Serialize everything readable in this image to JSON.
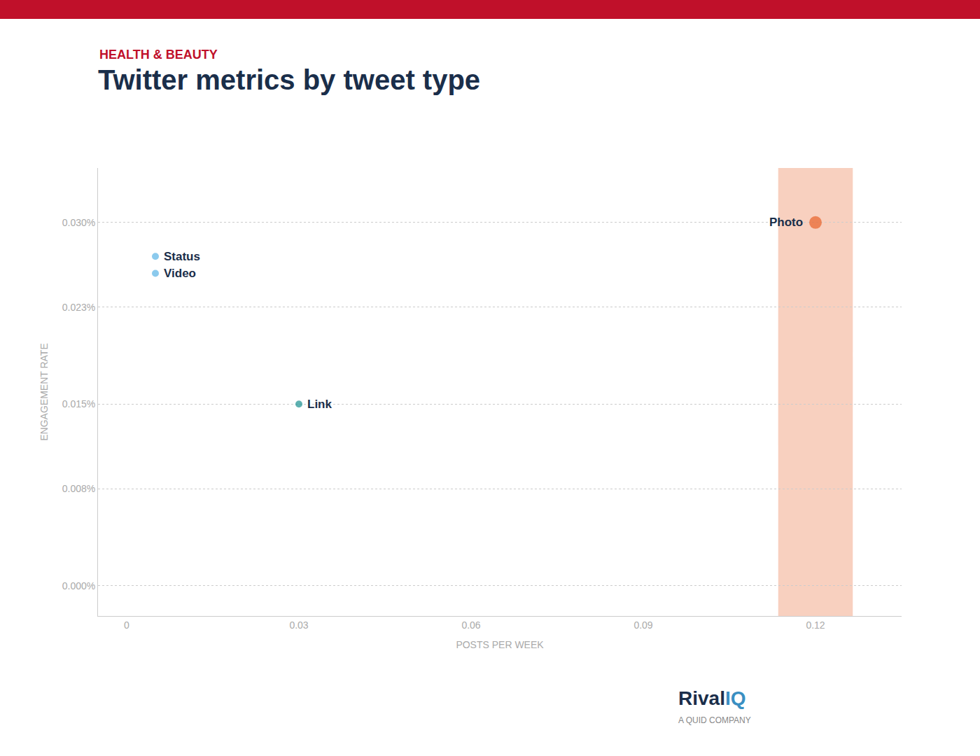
{
  "chart_data": {
    "type": "scatter",
    "subtitle": "HEALTH & BEAUTY",
    "title": "Twitter metrics by tweet type",
    "x_label": "POSTS PER WEEK",
    "y_label": "ENGAGEMENT RATE",
    "x": [
      0.12,
      0.005,
      0.005,
      0.03
    ],
    "values": [
      0.0003,
      0.000272,
      0.000258,
      0.00015
    ],
    "point_labels": [
      "Photo",
      "Status",
      "Video",
      "Link"
    ],
    "colors": [
      "#e8622a",
      "#5ab4e5",
      "#5ab4e5",
      "#1a9090"
    ],
    "bubble_radius": [
      0.0065,
      0,
      0,
      0
    ],
    "xlim": [
      -0.005,
      0.135
    ],
    "ylim": [
      -2.5e-05,
      0.000345
    ],
    "xticks": [
      0,
      0.03,
      0.06,
      0.09,
      0.12
    ],
    "yticks": [
      {
        "value": 0.0,
        "label": "0.000%"
      },
      {
        "value": 8e-05,
        "label": "0.008%"
      },
      {
        "value": 0.00015,
        "label": "0.015%"
      },
      {
        "value": 0.00023,
        "label": "0.023%"
      },
      {
        "value": 0.0003,
        "label": "0.030%"
      }
    ],
    "grid": true,
    "annotations": [
      "Rival",
      "IQ",
      "A QUID COMPANY"
    ]
  }
}
